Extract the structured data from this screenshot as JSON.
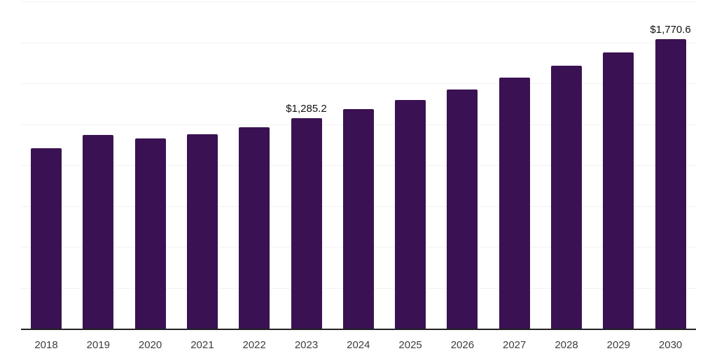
{
  "chart_data": {
    "type": "bar",
    "title": "",
    "xlabel": "",
    "ylabel": "",
    "categories": [
      "2018",
      "2019",
      "2020",
      "2021",
      "2022",
      "2023",
      "2024",
      "2025",
      "2026",
      "2027",
      "2028",
      "2029",
      "2030"
    ],
    "values": [
      1102.5,
      1184.0,
      1161.0,
      1187.0,
      1232.0,
      1285.2,
      1342.0,
      1399.0,
      1463.0,
      1533.0,
      1606.0,
      1686.0,
      1770.6
    ],
    "data_labels": [
      {
        "category": "2023",
        "text": "$1,285.2"
      },
      {
        "category": "2030",
        "text": "$1,770.6"
      }
    ],
    "ylim": [
      0,
      2000
    ],
    "grid_step": 250,
    "grid": true,
    "y_tick_labels_visible": false,
    "legend": false,
    "colors": {
      "bar": "#3a1253",
      "axis": "#222222",
      "grid": "#f2f2f2",
      "tick_label": "#3d3d3d",
      "data_label": "#111111",
      "background": "#ffffff"
    }
  }
}
